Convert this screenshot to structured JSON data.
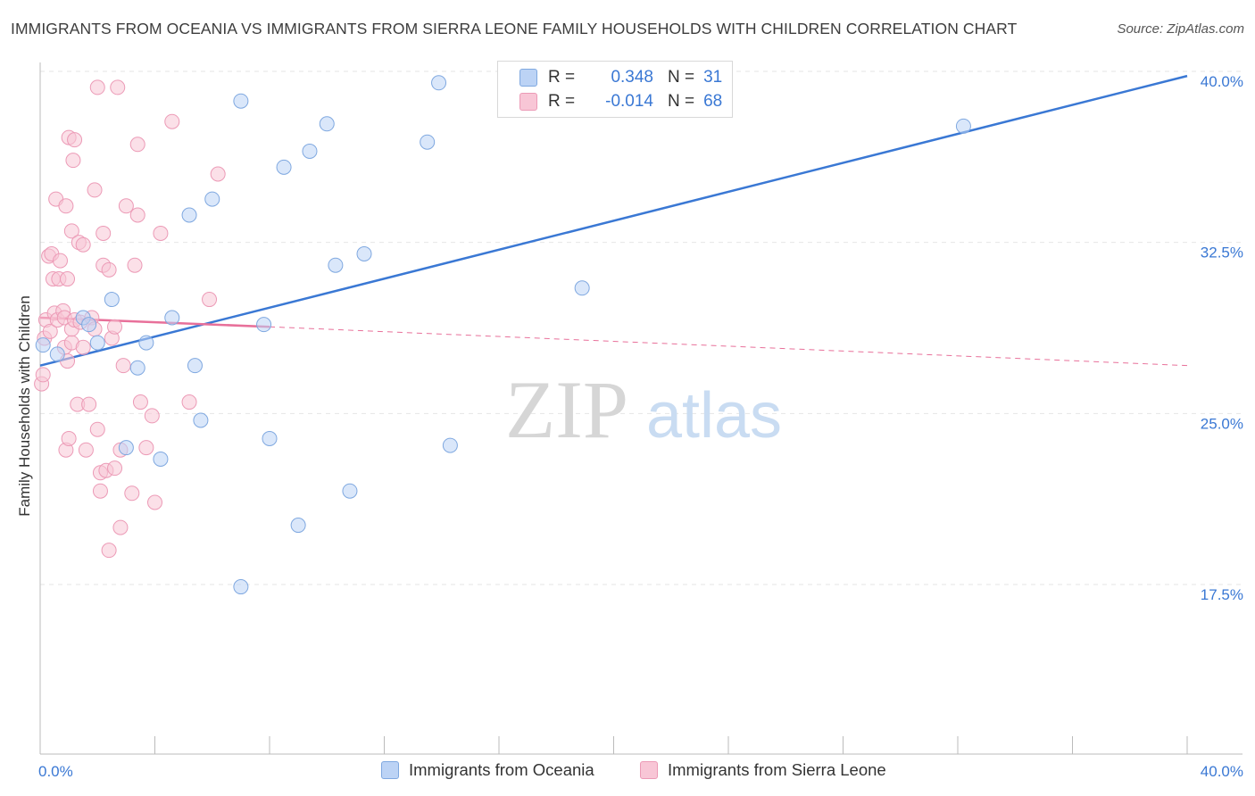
{
  "title": "IMMIGRANTS FROM OCEANIA VS IMMIGRANTS FROM SIERRA LEONE FAMILY HOUSEHOLDS WITH CHILDREN CORRELATION CHART",
  "source": "Source: ZipAtlas.com",
  "watermark": {
    "zip": "ZIP",
    "atlas": "atlas"
  },
  "legend": {
    "r_label": "R =",
    "n_label": "N =",
    "series": [
      {
        "r": "0.348",
        "n": "31"
      },
      {
        "r": "-0.014",
        "n": "68"
      }
    ]
  },
  "chart_data": {
    "type": "scatter",
    "title": "IMMIGRANTS FROM OCEANIA VS IMMIGRANTS FROM SIERRA LEONE FAMILY HOUSEHOLDS WITH CHILDREN CORRELATION CHART",
    "xlabel": "",
    "ylabel": "Family Households with Children",
    "xlim": [
      0,
      40
    ],
    "ylim": [
      10,
      41.5
    ],
    "x_tick_labels": [
      "0.0%",
      "40.0%"
    ],
    "y_ticks": [
      17.5,
      25.0,
      32.5,
      40.0
    ],
    "y_tick_labels": [
      "17.5%",
      "25.0%",
      "32.5%",
      "40.0%"
    ],
    "grid": true,
    "colors": {
      "blue": "#3a78d4",
      "blue_fill": "#bcd3f5",
      "pink": "#e8709a",
      "pink_fill": "#f8c6d6"
    },
    "series": [
      {
        "name": "Immigrants from Oceania",
        "color": "#3a78d4",
        "r": 0.348,
        "n": 31,
        "trend": {
          "x": [
            0,
            40
          ],
          "y": [
            27.1,
            39.8
          ],
          "style": "solid"
        },
        "points": [
          [
            0.1,
            28.0
          ],
          [
            0.6,
            27.6
          ],
          [
            1.5,
            29.2
          ],
          [
            1.7,
            28.9
          ],
          [
            2.0,
            28.1
          ],
          [
            2.5,
            30.0
          ],
          [
            3.0,
            23.5
          ],
          [
            3.4,
            27.0
          ],
          [
            3.7,
            28.1
          ],
          [
            4.2,
            23.0
          ],
          [
            4.6,
            29.2
          ],
          [
            5.2,
            33.7
          ],
          [
            5.4,
            27.1
          ],
          [
            5.6,
            24.7
          ],
          [
            6.0,
            34.4
          ],
          [
            7.0,
            38.7
          ],
          [
            7.0,
            17.4
          ],
          [
            7.8,
            28.9
          ],
          [
            8.0,
            23.9
          ],
          [
            8.5,
            35.8
          ],
          [
            9.0,
            20.1
          ],
          [
            9.4,
            36.5
          ],
          [
            10.0,
            37.7
          ],
          [
            10.3,
            31.5
          ],
          [
            10.8,
            21.6
          ],
          [
            11.3,
            32.0
          ],
          [
            13.5,
            36.9
          ],
          [
            13.9,
            39.5
          ],
          [
            14.3,
            23.6
          ],
          [
            18.9,
            30.5
          ],
          [
            32.2,
            37.6
          ]
        ]
      },
      {
        "name": "Immigrants from Sierra Leone",
        "color": "#e8709a",
        "r": -0.014,
        "n": 68,
        "trend": {
          "x_solid": [
            0,
            8
          ],
          "y_solid": [
            29.2,
            28.8
          ],
          "x_dashed": [
            8,
            40
          ],
          "y_dashed": [
            28.8,
            27.1
          ]
        },
        "points": [
          [
            0.05,
            26.3
          ],
          [
            0.1,
            26.7
          ],
          [
            0.15,
            28.3
          ],
          [
            0.2,
            29.1
          ],
          [
            0.3,
            31.9
          ],
          [
            0.35,
            28.6
          ],
          [
            0.4,
            32.0
          ],
          [
            0.45,
            30.9
          ],
          [
            0.5,
            29.4
          ],
          [
            0.55,
            34.4
          ],
          [
            0.6,
            29.1
          ],
          [
            0.65,
            30.9
          ],
          [
            0.7,
            31.7
          ],
          [
            0.8,
            29.5
          ],
          [
            0.85,
            27.9
          ],
          [
            0.85,
            29.2
          ],
          [
            0.9,
            34.1
          ],
          [
            0.9,
            23.4
          ],
          [
            0.95,
            30.9
          ],
          [
            0.95,
            27.3
          ],
          [
            1.0,
            37.1
          ],
          [
            1.0,
            23.9
          ],
          [
            1.1,
            28.1
          ],
          [
            1.1,
            28.7
          ],
          [
            1.1,
            33.0
          ],
          [
            1.15,
            36.1
          ],
          [
            1.2,
            29.1
          ],
          [
            1.2,
            37.0
          ],
          [
            1.3,
            25.4
          ],
          [
            1.35,
            32.5
          ],
          [
            1.4,
            29.0
          ],
          [
            1.5,
            27.9
          ],
          [
            1.5,
            32.4
          ],
          [
            1.6,
            23.4
          ],
          [
            1.7,
            25.4
          ],
          [
            1.8,
            29.2
          ],
          [
            1.9,
            28.7
          ],
          [
            1.9,
            34.8
          ],
          [
            2.0,
            39.3
          ],
          [
            2.0,
            24.3
          ],
          [
            2.1,
            22.4
          ],
          [
            2.1,
            21.6
          ],
          [
            2.2,
            32.9
          ],
          [
            2.2,
            31.5
          ],
          [
            2.3,
            22.5
          ],
          [
            2.4,
            19.0
          ],
          [
            2.4,
            31.3
          ],
          [
            2.5,
            28.3
          ],
          [
            2.6,
            22.6
          ],
          [
            2.6,
            28.8
          ],
          [
            2.7,
            39.3
          ],
          [
            2.8,
            23.4
          ],
          [
            2.8,
            20.0
          ],
          [
            2.9,
            27.1
          ],
          [
            3.0,
            34.1
          ],
          [
            3.2,
            21.5
          ],
          [
            3.3,
            31.5
          ],
          [
            3.4,
            33.7
          ],
          [
            3.4,
            36.8
          ],
          [
            3.5,
            25.5
          ],
          [
            3.7,
            23.5
          ],
          [
            3.9,
            24.9
          ],
          [
            4.0,
            21.1
          ],
          [
            4.2,
            32.9
          ],
          [
            4.6,
            37.8
          ],
          [
            5.2,
            25.5
          ],
          [
            5.9,
            30.0
          ],
          [
            6.2,
            35.5
          ]
        ]
      }
    ]
  }
}
